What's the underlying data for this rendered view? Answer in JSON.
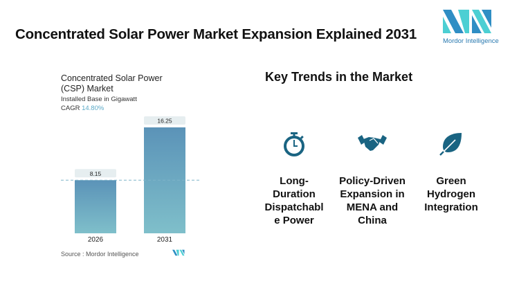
{
  "header": {
    "title": "Concentrated Solar Power Market Expansion Explained 2031",
    "logo_text": "Mordor Intelligence"
  },
  "chart_data": {
    "type": "bar",
    "title": "Concentrated Solar Power (CSP) Market",
    "subtitle": "Installed Base in Gigawatt",
    "cagr_label": "CAGR",
    "cagr_value": "14.80%",
    "categories": [
      "2026",
      "2031"
    ],
    "values": [
      8.15,
      16.25
    ],
    "data_labels": [
      "8.15",
      "16.25"
    ],
    "source": "Source :  Mordor Intelligence",
    "colors": {
      "bar_top": "#5b93b8",
      "bar_bottom": "#7fbfca",
      "cagr": "#5aa9c7"
    }
  },
  "trends": {
    "heading": "Key Trends in the Market",
    "items": [
      {
        "icon": "stopwatch-icon",
        "label": "Long-Duration Dispatchable Power",
        "lines": [
          "Long-",
          "Duration",
          "Dispatchabl",
          "e Power"
        ]
      },
      {
        "icon": "handshake-icon",
        "label": "Policy-Driven Expansion in MENA and China",
        "lines": [
          "Policy-Driven",
          "Expansion in",
          "MENA and",
          "China"
        ]
      },
      {
        "icon": "leaf-icon",
        "label": "Green Hydrogen Integration",
        "lines": [
          "Green",
          "Hydrogen",
          "Integration"
        ]
      }
    ],
    "icon_color": "#1a6482"
  }
}
